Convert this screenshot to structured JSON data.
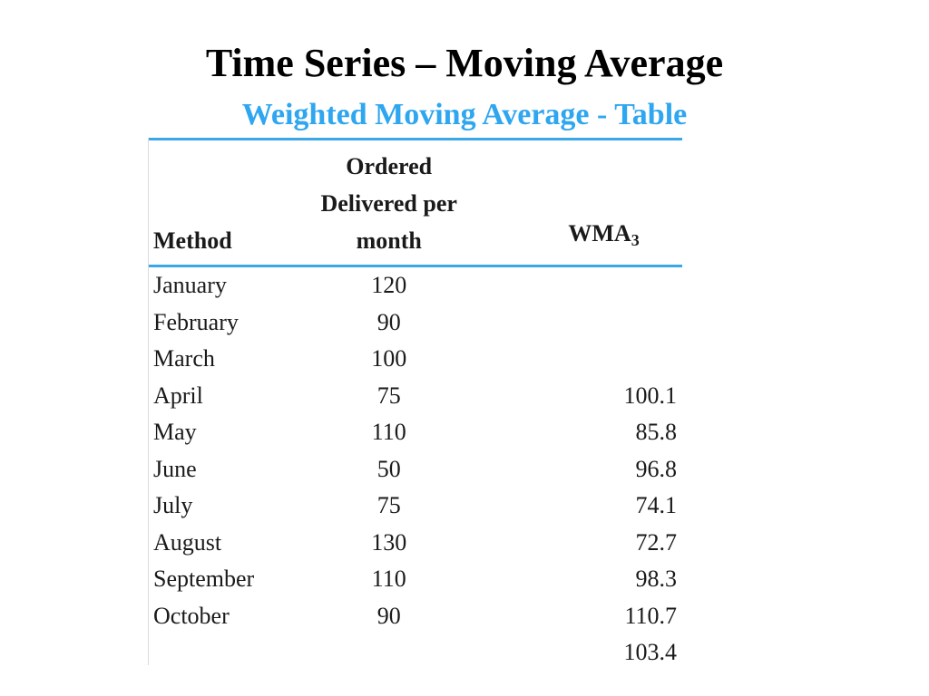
{
  "slide": {
    "title": "Time Series – Moving Average",
    "subtitle": "Weighted Moving Average - Table",
    "subtitle_color": "#2ea6f0",
    "rule_color": "#3aa8e6"
  },
  "table": {
    "headers": {
      "method": "Method",
      "ordered_line1": "Ordered",
      "ordered_line2": "Delivered per",
      "ordered_line3": "month",
      "wma_main": "WMA",
      "wma_sub": "3"
    },
    "rows": [
      {
        "month": "January",
        "ordered": "120",
        "wma": ""
      },
      {
        "month": "February",
        "ordered": "90",
        "wma": ""
      },
      {
        "month": "March",
        "ordered": "100",
        "wma": ""
      },
      {
        "month": "April",
        "ordered": "75",
        "wma": "100.1"
      },
      {
        "month": "May",
        "ordered": "110",
        "wma": "85.8"
      },
      {
        "month": "June",
        "ordered": "50",
        "wma": "96.8"
      },
      {
        "month": "July",
        "ordered": "75",
        "wma": "74.1"
      },
      {
        "month": "August",
        "ordered": "130",
        "wma": "72.7"
      },
      {
        "month": "September",
        "ordered": "110",
        "wma": "98.3"
      },
      {
        "month": "October",
        "ordered": "90",
        "wma": "110.7"
      },
      {
        "month": "",
        "ordered": "",
        "wma": "103.4"
      }
    ]
  }
}
